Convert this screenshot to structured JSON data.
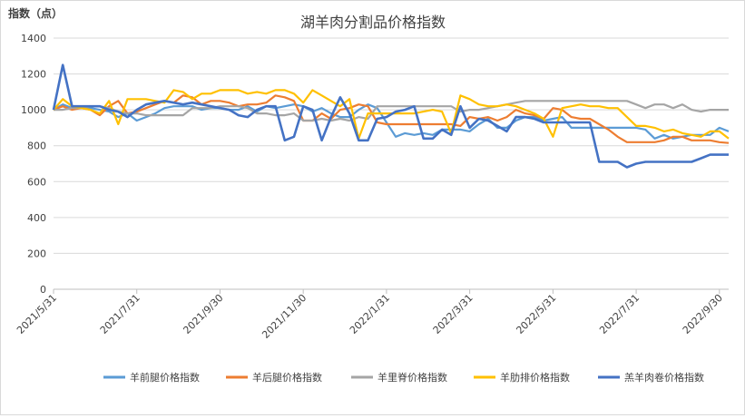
{
  "chart_data": {
    "type": "line",
    "title": "湖羊肉分割品价格指数",
    "ylabel": "指数（点）",
    "xlabel": "",
    "ylim": [
      0,
      1400
    ],
    "yticks": [
      0,
      200,
      400,
      600,
      800,
      1000,
      1200,
      1400
    ],
    "x_tick_labels": [
      "2021/5/31",
      "2021/7/31",
      "2021/9/30",
      "2021/11/30",
      "2022/1/31",
      "2022/3/31",
      "2022/5/31",
      "2022/7/31",
      "2022/9/30"
    ],
    "x_tick_positions": [
      0,
      9,
      18,
      27,
      36,
      45,
      54,
      63,
      72
    ],
    "grid": "horizontal",
    "legend": "bottom",
    "series": [
      {
        "name": "羊前腿价格指数",
        "color": "#5B9BD5",
        "values": [
          1000,
          1030,
          1010,
          1010,
          1010,
          1000,
          990,
          960,
          980,
          940,
          960,
          980,
          1010,
          1020,
          1020,
          1020,
          1000,
          1010,
          1010,
          1000,
          1000,
          1020,
          990,
          1020,
          1010,
          1020,
          1030,
          1020,
          990,
          1010,
          980,
          960,
          960,
          1000,
          1030,
          1010,
          930,
          850,
          870,
          860,
          870,
          860,
          890,
          890,
          890,
          880,
          920,
          950,
          900,
          900,
          940,
          960,
          960,
          940,
          950,
          960,
          900,
          900,
          900,
          900,
          900,
          900,
          900,
          900,
          890,
          840,
          860,
          840,
          850,
          860,
          860,
          860,
          900,
          880
        ]
      },
      {
        "name": "羊后腿价格指数",
        "color": "#ED7D31",
        "values": [
          1000,
          1020,
          1000,
          1010,
          1000,
          970,
          1020,
          1050,
          980,
          990,
          1010,
          1030,
          1050,
          1040,
          1080,
          1070,
          1030,
          1050,
          1050,
          1040,
          1020,
          1030,
          1030,
          1040,
          1080,
          1070,
          1050,
          940,
          940,
          980,
          950,
          1000,
          1010,
          1030,
          1020,
          930,
          920,
          920,
          920,
          920,
          920,
          920,
          920,
          920,
          910,
          960,
          950,
          960,
          940,
          960,
          1000,
          980,
          970,
          950,
          1010,
          1000,
          960,
          950,
          950,
          920,
          890,
          850,
          820,
          820,
          820,
          820,
          830,
          850,
          850,
          830,
          830,
          830,
          820,
          815
        ]
      },
      {
        "name": "羊里脊价格指数",
        "color": "#A5A5A5",
        "values": [
          1000,
          1000,
          1010,
          1010,
          1020,
          1020,
          1010,
          990,
          980,
          980,
          970,
          970,
          970,
          970,
          970,
          1010,
          1010,
          1010,
          1020,
          1020,
          1020,
          1010,
          980,
          980,
          970,
          970,
          980,
          940,
          940,
          950,
          940,
          950,
          940,
          960,
          950,
          1020,
          1020,
          1020,
          1020,
          1020,
          1020,
          1020,
          1020,
          1020,
          990,
          1000,
          1000,
          1010,
          1020,
          1030,
          1040,
          1050,
          1050,
          1050,
          1050,
          1050,
          1050,
          1050,
          1050,
          1050,
          1050,
          1050,
          1050,
          1030,
          1010,
          1030,
          1030,
          1010,
          1030,
          1000,
          990,
          1000,
          1000,
          1000
        ]
      },
      {
        "name": "羊肋排价格指数",
        "color": "#FFC000",
        "values": [
          1000,
          1060,
          1020,
          1010,
          1000,
          980,
          1050,
          920,
          1060,
          1060,
          1060,
          1050,
          1040,
          1110,
          1100,
          1060,
          1090,
          1090,
          1110,
          1110,
          1110,
          1090,
          1100,
          1090,
          1110,
          1110,
          1090,
          1040,
          1110,
          1080,
          1050,
          1020,
          1060,
          840,
          980,
          980,
          980,
          980,
          980,
          980,
          990,
          1000,
          990,
          870,
          1080,
          1060,
          1030,
          1020,
          1020,
          1030,
          1020,
          1000,
          980,
          950,
          850,
          1010,
          1020,
          1030,
          1020,
          1020,
          1010,
          1010,
          960,
          910,
          910,
          900,
          880,
          890,
          870,
          860,
          850,
          880,
          880,
          840
        ]
      },
      {
        "name": "羔羊肉卷价格指数",
        "color": "#4472C4",
        "values": [
          1000,
          1250,
          1020,
          1020,
          1020,
          1020,
          1000,
          990,
          960,
          1000,
          1030,
          1040,
          1050,
          1040,
          1030,
          1040,
          1030,
          1020,
          1010,
          1000,
          970,
          960,
          1000,
          1020,
          1020,
          830,
          850,
          1020,
          1000,
          830,
          960,
          1070,
          980,
          830,
          830,
          950,
          960,
          990,
          1000,
          1020,
          840,
          840,
          890,
          860,
          1020,
          900,
          950,
          940,
          910,
          880,
          960,
          960,
          950,
          930,
          930,
          930,
          930,
          930,
          930,
          710,
          710,
          710,
          680,
          700,
          710,
          710,
          710,
          710,
          710,
          710,
          730,
          750,
          750,
          750
        ]
      }
    ]
  }
}
